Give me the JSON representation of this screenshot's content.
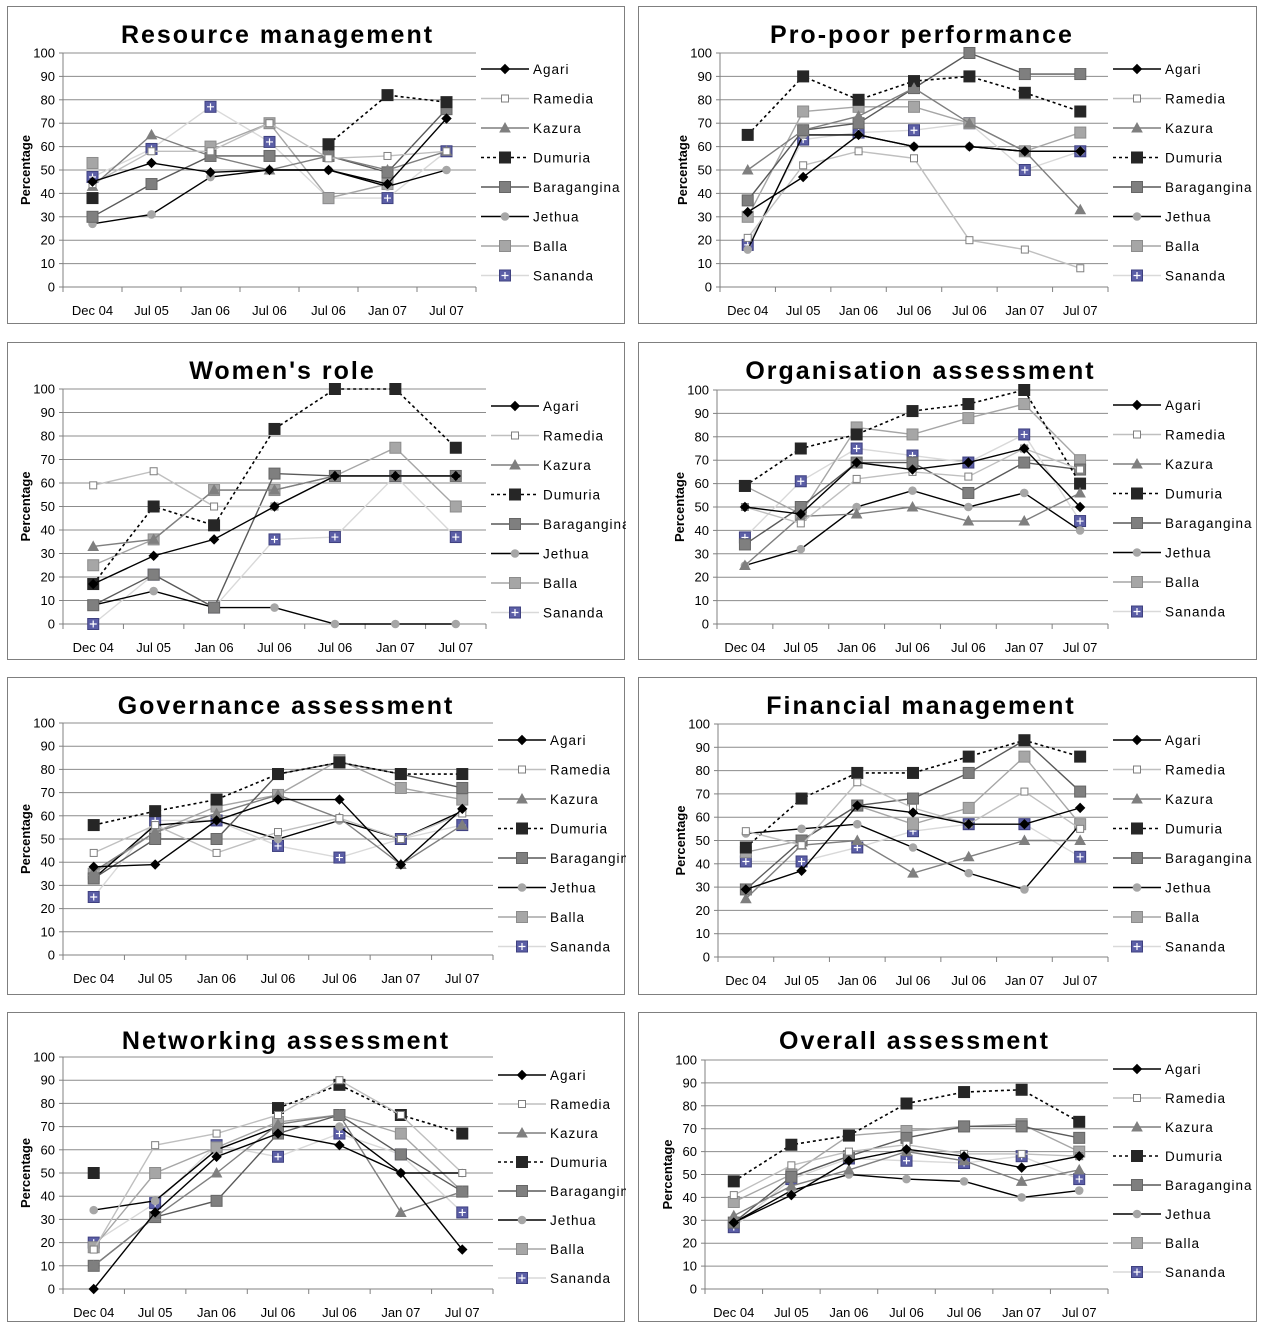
{
  "legend_style": [
    {
      "name": "Agari",
      "color": "#000000",
      "dash": "",
      "marker": "diamond",
      "mfill": "#000000",
      "mstroke": "#000000",
      "lw": 1.4
    },
    {
      "name": "Ramedia",
      "color": "#bfbfbf",
      "dash": "",
      "marker": "square-open",
      "mfill": "#ffffff",
      "mstroke": "#7f7f7f",
      "lw": 1.4
    },
    {
      "name": "Kazura",
      "color": "#7f7f7f",
      "dash": "",
      "marker": "triangle",
      "mfill": "#7f7f7f",
      "mstroke": "#7f7f7f",
      "lw": 1.4
    },
    {
      "name": "Dumuria",
      "color": "#000000",
      "dash": "3,3",
      "marker": "square",
      "mfill": "#262626",
      "mstroke": "#262626",
      "lw": 1.6
    },
    {
      "name": "Baragangina",
      "color": "#595959",
      "dash": "",
      "marker": "square",
      "mfill": "#7f7f7f",
      "mstroke": "#666666",
      "lw": 1.4
    },
    {
      "name": "Jethua",
      "color": "#000000",
      "dash": "",
      "marker": "circle",
      "mfill": "#a6a6a6",
      "mstroke": "#a6a6a6",
      "lw": 1.4
    },
    {
      "name": "Balla",
      "color": "#a6a6a6",
      "dash": "",
      "marker": "square",
      "mfill": "#a6a6a6",
      "mstroke": "#8c8c8c",
      "lw": 1.4
    },
    {
      "name": "Sananda",
      "color": "#d9d9d9",
      "dash": "",
      "marker": "plus-square",
      "mfill": "#5b5ea6",
      "mstroke": "#3f4180",
      "lw": 1.4
    }
  ],
  "chart_data": [
    {
      "type": "line",
      "title": "Resource management",
      "ylabel": "Percentage",
      "ylim": [
        0,
        100
      ],
      "categories": [
        "Dec 04",
        "Jul 05",
        "Jan 06",
        "Jul 06",
        "Jul 06",
        "Jan 07",
        "Jul 07"
      ],
      "series": [
        {
          "name": "Agari",
          "values": [
            45,
            53,
            49,
            50,
            50,
            44,
            72
          ]
        },
        {
          "name": "Ramedia",
          "values": [
            44,
            58,
            58,
            70,
            55,
            56,
            58
          ]
        },
        {
          "name": "Kazura",
          "values": [
            43,
            65,
            56,
            50,
            56,
            50,
            58
          ]
        },
        {
          "name": "Dumuria",
          "values": [
            38,
            null,
            null,
            null,
            61,
            82,
            79
          ]
        },
        {
          "name": "Baragangina",
          "values": [
            30,
            44,
            56,
            56,
            56,
            49,
            76
          ]
        },
        {
          "name": "Jethua",
          "values": [
            27,
            31,
            47,
            50,
            50,
            43,
            50
          ]
        },
        {
          "name": "Balla",
          "values": [
            53,
            null,
            60,
            70,
            38,
            44,
            null
          ]
        },
        {
          "name": "Sananda",
          "values": [
            47,
            59,
            77,
            62,
            38,
            38,
            58
          ]
        }
      ]
    },
    {
      "type": "line",
      "title": "Pro-poor performance",
      "ylabel": "Percentage",
      "ylim": [
        0,
        100
      ],
      "categories": [
        "Dec 04",
        "Jul 05",
        "Jan 06",
        "Jul 06",
        "Jul 06",
        "Jan 07",
        "Jul 07"
      ],
      "series": [
        {
          "name": "Agari",
          "values": [
            32,
            47,
            65,
            60,
            60,
            58,
            58
          ]
        },
        {
          "name": "Ramedia",
          "values": [
            21,
            52,
            58,
            55,
            20,
            16,
            8
          ]
        },
        {
          "name": "Kazura",
          "values": [
            50,
            67,
            73,
            85,
            70,
            58,
            33
          ]
        },
        {
          "name": "Dumuria",
          "values": [
            65,
            90,
            80,
            88,
            90,
            83,
            75
          ]
        },
        {
          "name": "Baragangina",
          "values": [
            37,
            67,
            70,
            85,
            100,
            91,
            91
          ]
        },
        {
          "name": "Jethua",
          "values": [
            16,
            65,
            65,
            60,
            60,
            58,
            58
          ]
        },
        {
          "name": "Balla",
          "values": [
            30,
            75,
            77,
            77,
            70,
            58,
            66
          ]
        },
        {
          "name": "Sananda",
          "values": [
            18,
            63,
            66,
            67,
            70,
            50,
            58
          ]
        }
      ]
    },
    {
      "type": "line",
      "title": "Women's role",
      "ylabel": "Percentage",
      "ylim": [
        0,
        100
      ],
      "categories": [
        "Dec 04",
        "Jul 05",
        "Jan 06",
        "Jul 06",
        "Jul 06",
        "Jan 07",
        "Jul 07"
      ],
      "series": [
        {
          "name": "Agari",
          "values": [
            17,
            29,
            36,
            50,
            63,
            63,
            63
          ]
        },
        {
          "name": "Ramedia",
          "values": [
            59,
            65,
            50,
            50,
            63,
            63,
            63
          ]
        },
        {
          "name": "Kazura",
          "values": [
            33,
            36,
            57,
            57,
            63,
            63,
            63
          ]
        },
        {
          "name": "Dumuria",
          "values": [
            17,
            50,
            42,
            83,
            100,
            100,
            75
          ]
        },
        {
          "name": "Baragangina",
          "values": [
            8,
            21,
            7,
            64,
            63,
            63,
            63
          ]
        },
        {
          "name": "Jethua",
          "values": [
            8,
            14,
            7,
            7,
            0,
            0,
            0
          ]
        },
        {
          "name": "Balla",
          "values": [
            25,
            36,
            57,
            57,
            63,
            75,
            50
          ]
        },
        {
          "name": "Sananda",
          "values": [
            0,
            21,
            7,
            36,
            37,
            63,
            37
          ]
        }
      ]
    },
    {
      "type": "line",
      "title": "Organisation assessment",
      "ylabel": "Percentage",
      "ylim": [
        0,
        100
      ],
      "categories": [
        "Dec 04",
        "Jul 05",
        "Jan 06",
        "Jul 06",
        "Jul 06",
        "Jan 07",
        "Jul 07"
      ],
      "series": [
        {
          "name": "Agari",
          "values": [
            50,
            47,
            69,
            66,
            69,
            75,
            50
          ]
        },
        {
          "name": "Ramedia",
          "values": [
            50,
            43,
            62,
            65,
            63,
            75,
            66
          ]
        },
        {
          "name": "Kazura",
          "values": [
            25,
            46,
            47,
            50,
            44,
            44,
            56
          ]
        },
        {
          "name": "Dumuria",
          "values": [
            59,
            75,
            81,
            91,
            94,
            100,
            60
          ]
        },
        {
          "name": "Baragangina",
          "values": [
            34,
            50,
            69,
            69,
            56,
            69,
            66
          ]
        },
        {
          "name": "Jethua",
          "values": [
            25,
            32,
            50,
            57,
            50,
            56,
            40
          ]
        },
        {
          "name": "Balla",
          "values": [
            59,
            47,
            84,
            81,
            88,
            94,
            70
          ]
        },
        {
          "name": "Sananda",
          "values": [
            37,
            61,
            75,
            72,
            69,
            81,
            44
          ]
        }
      ]
    },
    {
      "type": "line",
      "title": "Governance assessment",
      "ylabel": "Percentage",
      "ylim": [
        0,
        100
      ],
      "categories": [
        "Dec 04",
        "Jul 05",
        "Jan 06",
        "Jul 06",
        "Jul 06",
        "Jan 07",
        "Jul 07"
      ],
      "series": [
        {
          "name": "Agari",
          "values": [
            38,
            39,
            58,
            67,
            67,
            39,
            63
          ]
        },
        {
          "name": "Ramedia",
          "values": [
            44,
            56,
            44,
            53,
            59,
            50,
            61
          ]
        },
        {
          "name": "Kazura",
          "values": [
            36,
            53,
            61,
            69,
            59,
            39,
            56
          ]
        },
        {
          "name": "Dumuria",
          "values": [
            56,
            62,
            67,
            78,
            83,
            78,
            78
          ]
        },
        {
          "name": "Baragangina",
          "values": [
            33,
            50,
            50,
            78,
            83,
            78,
            72
          ]
        },
        {
          "name": "Jethua",
          "values": [
            33,
            56,
            58,
            50,
            58,
            50,
            62
          ]
        },
        {
          "name": "Balla",
          "values": [
            35,
            53,
            64,
            69,
            84,
            72,
            67
          ]
        },
        {
          "name": "Sananda",
          "values": [
            25,
            58,
            58,
            47,
            42,
            50,
            56
          ]
        }
      ]
    },
    {
      "type": "line",
      "title": "Financial management",
      "ylabel": "Percentage",
      "ylim": [
        0,
        100
      ],
      "categories": [
        "Dec 04",
        "Jul 05",
        "Jan 06",
        "Jul 06",
        "Jul 06",
        "Jan 07",
        "Jul 07"
      ],
      "series": [
        {
          "name": "Agari",
          "values": [
            29,
            37,
            65,
            62,
            57,
            57,
            64
          ]
        },
        {
          "name": "Ramedia",
          "values": [
            54,
            48,
            75,
            64,
            57,
            71,
            55
          ]
        },
        {
          "name": "Kazura",
          "values": [
            25,
            48,
            50,
            36,
            43,
            50,
            50
          ]
        },
        {
          "name": "Dumuria",
          "values": [
            47,
            68,
            79,
            79,
            86,
            93,
            86
          ]
        },
        {
          "name": "Baragangina",
          "values": [
            29,
            50,
            65,
            68,
            79,
            93,
            71
          ]
        },
        {
          "name": "Jethua",
          "values": [
            53,
            55,
            57,
            47,
            36,
            29,
            57
          ]
        },
        {
          "name": "Balla",
          "values": [
            45,
            50,
            65,
            57,
            64,
            86,
            57
          ]
        },
        {
          "name": "Sananda",
          "values": [
            41,
            41,
            47,
            54,
            57,
            57,
            43
          ]
        }
      ]
    },
    {
      "type": "line",
      "title": "Networking assessment",
      "ylabel": "Percentage",
      "ylim": [
        0,
        100
      ],
      "categories": [
        "Dec 04",
        "Jul 05",
        "Jan 06",
        "Jul 06",
        "Jul 06",
        "Jan 07",
        "Jul 07"
      ],
      "series": [
        {
          "name": "Agari",
          "values": [
            0,
            33,
            57,
            67,
            62,
            50,
            17
          ]
        },
        {
          "name": "Ramedia",
          "values": [
            17,
            62,
            67,
            75,
            90,
            75,
            50
          ]
        },
        {
          "name": "Kazura",
          "values": [
            10,
            31,
            50,
            71,
            75,
            33,
            42
          ]
        },
        {
          "name": "Dumuria",
          "values": [
            50,
            null,
            null,
            78,
            88,
            75,
            67
          ]
        },
        {
          "name": "Baragangina",
          "values": [
            10,
            31,
            38,
            67,
            75,
            58,
            42
          ]
        },
        {
          "name": "Jethua",
          "values": [
            34,
            38,
            60,
            70,
            70,
            50,
            50
          ]
        },
        {
          "name": "Balla",
          "values": [
            18,
            50,
            61,
            72,
            75,
            67,
            42
          ]
        },
        {
          "name": "Sananda",
          "values": [
            20,
            37,
            62,
            57,
            67,
            58,
            33
          ]
        }
      ]
    },
    {
      "type": "line",
      "title": "Overall assessment",
      "ylabel": "Percentage",
      "ylim": [
        0,
        100
      ],
      "categories": [
        "Dec 04",
        "Jul 05",
        "Jan 06",
        "Jul 06",
        "Jul 06",
        "Jan 07",
        "Jul 07"
      ],
      "series": [
        {
          "name": "Agari",
          "values": [
            29,
            41,
            56,
            61,
            58,
            53,
            58
          ]
        },
        {
          "name": "Ramedia",
          "values": [
            41,
            54,
            60,
            63,
            59,
            59,
            58
          ]
        },
        {
          "name": "Kazura",
          "values": [
            32,
            45,
            52,
            60,
            56,
            47,
            52
          ]
        },
        {
          "name": "Dumuria",
          "values": [
            47,
            63,
            67,
            81,
            86,
            87,
            73
          ]
        },
        {
          "name": "Baragangina",
          "values": [
            29,
            49,
            58,
            66,
            71,
            71,
            66
          ]
        },
        {
          "name": "Jethua",
          "values": [
            29,
            43,
            50,
            48,
            47,
            40,
            43
          ]
        },
        {
          "name": "Balla",
          "values": [
            38,
            50,
            67,
            69,
            71,
            72,
            60
          ]
        },
        {
          "name": "Sananda",
          "values": [
            27,
            48,
            57,
            56,
            55,
            58,
            48
          ]
        }
      ]
    }
  ]
}
